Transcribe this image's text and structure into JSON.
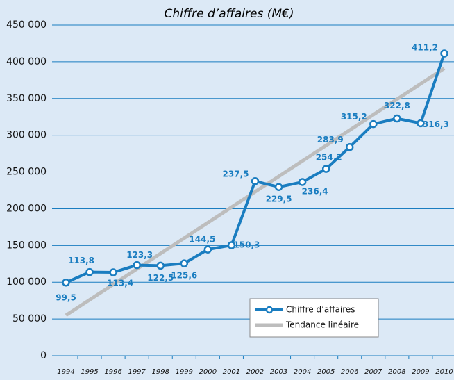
{
  "chart_data": {
    "type": "line",
    "title": "Chiffre d’affaires (M€)",
    "categories": [
      "1994",
      "1995",
      "1996",
      "1997",
      "1998",
      "1999",
      "2000",
      "2001",
      "2002",
      "2003",
      "2004",
      "2005",
      "2006",
      "2007",
      "2008",
      "2009",
      "2010"
    ],
    "series": [
      {
        "name": "Chiffre d’affaires",
        "color": "#1a7dc0",
        "values": [
          99500,
          113800,
          113400,
          123300,
          122500,
          125600,
          144500,
          150300,
          237500,
          229500,
          236400,
          254200,
          283900,
          315200,
          322800,
          316300,
          411200
        ],
        "value_labels": [
          "99,5",
          "113,8",
          "113,4",
          "123,3",
          "122,5",
          "125,6",
          "144,5",
          "150,3",
          "237,5",
          "229,5",
          "236,4",
          "254,2",
          "283,9",
          "315,2",
          "322,8",
          "316,3",
          "411,2"
        ]
      },
      {
        "name": "Tendance linéaire",
        "color": "#bdbdbd",
        "values": [
          55000,
          76000,
          97000,
          118000,
          139000,
          160000,
          181000,
          202000,
          223000,
          244000,
          265000,
          286000,
          307000,
          328000,
          349000,
          370000,
          391000
        ]
      }
    ],
    "ylim": [
      0,
      450000
    ],
    "yticks": [
      0,
      {
        "value": 50000,
        "label": "50 000"
      },
      {
        "value": 100000,
        "label": "100 000"
      },
      {
        "value": 150000,
        "label": "150 000"
      },
      {
        "value": 200000,
        "label": "200 000"
      },
      {
        "value": 250000,
        "label": "250 000"
      },
      {
        "value": 300000,
        "label": "300 000"
      },
      {
        "value": 350000,
        "label": "350 000"
      },
      {
        "value": 400000,
        "label": "400 000"
      },
      {
        "value": 450000,
        "label": "450 000"
      }
    ],
    "grid": true
  }
}
